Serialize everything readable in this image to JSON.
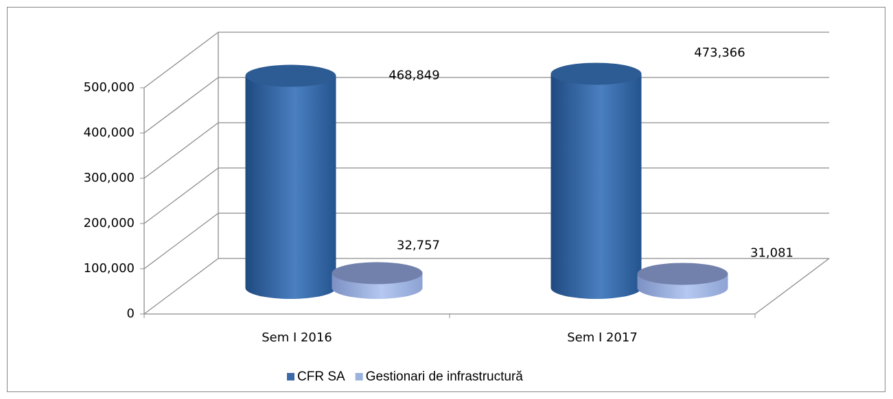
{
  "chart_data": {
    "type": "bar3d",
    "categories": [
      "Sem I 2016",
      "Sem I 2017"
    ],
    "series": [
      {
        "name": "CFR SA",
        "color": "#3c69a8",
        "values": [
          468849,
          473366
        ],
        "value_labels": [
          "468,849",
          "473,366"
        ]
      },
      {
        "name": "Gestionari de infrastructură",
        "color": "#9bb1de",
        "values": [
          32757,
          31081
        ],
        "value_labels": [
          "32,757",
          "31,081"
        ]
      }
    ],
    "ylim": [
      0,
      500000
    ],
    "yticks": [
      0,
      {
        "value": 100000,
        "label": "100,000"
      },
      {
        "value": 200000,
        "label": "200,000"
      },
      {
        "value": 300000,
        "label": "300,000"
      },
      {
        "value": 400000,
        "label": "400,000"
      },
      {
        "value": 500000,
        "label": "500,000"
      }
    ],
    "grid": true,
    "legend": "bottom"
  }
}
